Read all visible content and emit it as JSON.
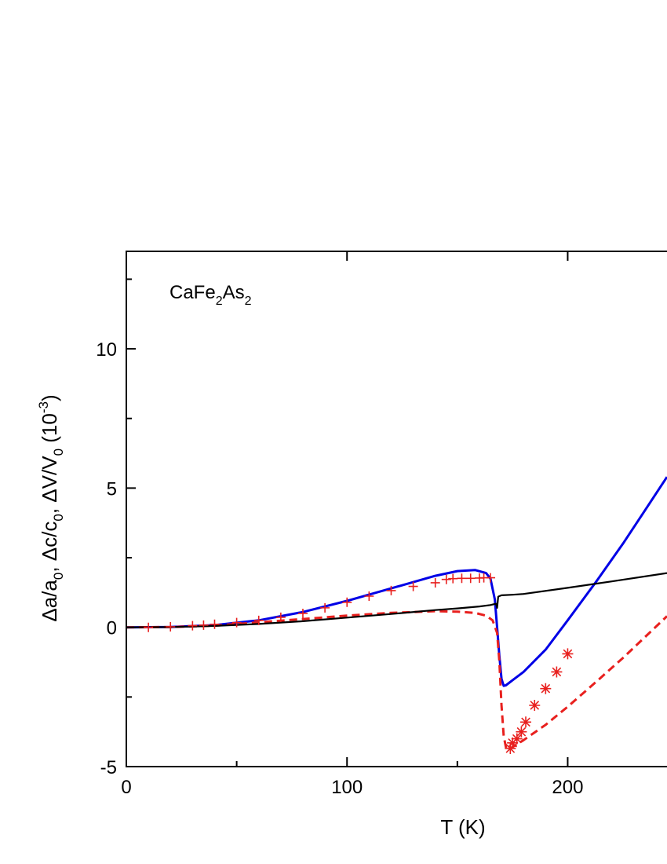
{
  "chart_data": {
    "type": "line",
    "annotation": {
      "base": "CaFe",
      "sub1": "2",
      "mid": "As",
      "sub2": "2"
    },
    "xlabel": "T (K)",
    "ylabel": {
      "part1": "Δa/a",
      "sub1": "0",
      "part2": ", Δc/c",
      "sub2": "0",
      "part3": ", ΔV/V",
      "sub3": "0",
      "part4": " (10",
      "sup": "-3",
      "part5": ")"
    },
    "xlim": [
      0,
      245
    ],
    "ylim": [
      -5,
      13.5
    ],
    "xticks": [
      0,
      100,
      200
    ],
    "xtick_labels": [
      "0",
      "100",
      "200"
    ],
    "yticks": [
      -5,
      0,
      5,
      10
    ],
    "ytick_labels": [
      "-5",
      "0",
      "5",
      "10"
    ],
    "colors": {
      "blue": "#0000e6",
      "red": "#e8201e",
      "black": "#000000"
    },
    "series": [
      {
        "name": "blue-solid-curve",
        "style": "solid",
        "color": "#0000e6",
        "x": [
          0,
          20,
          40,
          60,
          80,
          100,
          120,
          140,
          150,
          158,
          163,
          165,
          167,
          168,
          169,
          170,
          171,
          172,
          175,
          180,
          190,
          200,
          213,
          225,
          235,
          245
        ],
        "y": [
          0,
          0.01,
          0.08,
          0.25,
          0.55,
          0.95,
          1.4,
          1.85,
          2.02,
          2.06,
          1.95,
          1.75,
          1.0,
          0.0,
          -1.0,
          -1.85,
          -2.1,
          -2.08,
          -1.9,
          -1.6,
          -0.8,
          0.25,
          1.65,
          3.0,
          4.2,
          5.4
        ]
      },
      {
        "name": "red-dashed-curve",
        "style": "dashed",
        "color": "#e8201e",
        "x": [
          0,
          20,
          40,
          60,
          80,
          100,
          120,
          140,
          150,
          158,
          163,
          166,
          168,
          169,
          170,
          171,
          172,
          173,
          175,
          180,
          190,
          200,
          213,
          225,
          235,
          245
        ],
        "y": [
          0,
          0.01,
          0.06,
          0.18,
          0.3,
          0.42,
          0.52,
          0.58,
          0.56,
          0.52,
          0.42,
          0.25,
          -0.2,
          -1.2,
          -2.8,
          -3.9,
          -4.3,
          -4.4,
          -4.3,
          -4.05,
          -3.5,
          -2.85,
          -1.95,
          -1.1,
          -0.35,
          0.4
        ]
      },
      {
        "name": "black-solid-curve",
        "style": "solid",
        "color": "#000000",
        "x": [
          0,
          20,
          40,
          60,
          80,
          100,
          120,
          140,
          150,
          160,
          165,
          167.5,
          168,
          168.5,
          169,
          170,
          175,
          180,
          200,
          220,
          245
        ],
        "y": [
          0,
          0.01,
          0.05,
          0.12,
          0.22,
          0.35,
          0.48,
          0.62,
          0.68,
          0.75,
          0.8,
          0.85,
          0.7,
          1.1,
          1.12,
          1.15,
          1.17,
          1.2,
          1.42,
          1.65,
          1.95
        ]
      }
    ],
    "markers_plus": {
      "name": "red-plus-markers",
      "color": "#e8201e",
      "x": [
        10,
        20,
        30,
        35,
        40,
        50,
        60,
        70,
        80,
        90,
        100,
        110,
        120,
        130,
        140,
        145,
        148,
        152,
        156,
        160,
        162,
        165
      ],
      "y": [
        0,
        0.02,
        0.06,
        0.08,
        0.11,
        0.17,
        0.25,
        0.36,
        0.5,
        0.7,
        0.9,
        1.12,
        1.32,
        1.47,
        1.6,
        1.72,
        1.75,
        1.76,
        1.76,
        1.77,
        1.78,
        1.78
      ]
    },
    "markers_star": {
      "name": "red-asterisk-markers",
      "color": "#e8201e",
      "x": [
        174,
        175,
        177,
        179,
        181,
        185,
        190,
        195,
        200
      ],
      "y": [
        -4.35,
        -4.15,
        -4.0,
        -3.75,
        -3.4,
        -2.8,
        -2.2,
        -1.6,
        -0.95
      ]
    }
  }
}
